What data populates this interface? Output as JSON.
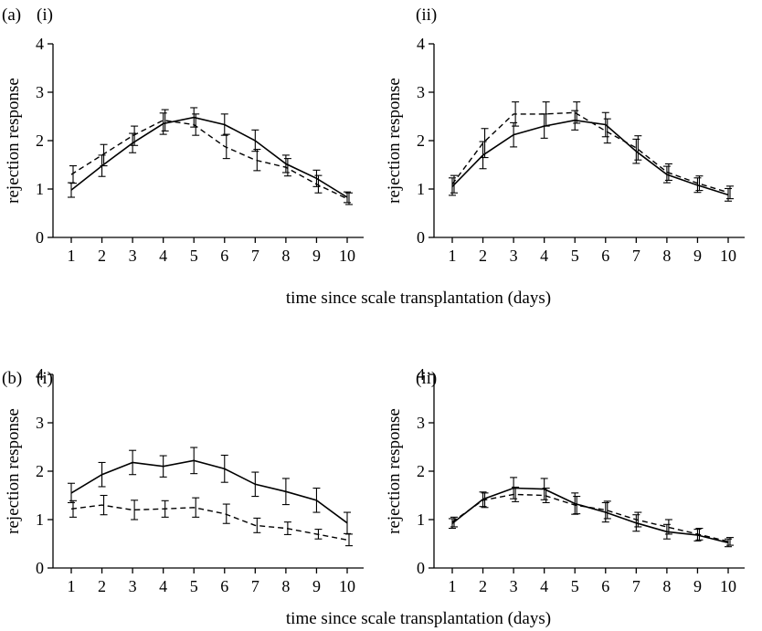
{
  "figure": {
    "xlabel_shared": "time since scale transplantation (days)",
    "section_labels": [
      "(a)",
      "(b)"
    ]
  },
  "chart_data": [
    {
      "type": "line",
      "panel": "(i)",
      "section": "(a)",
      "x": [
        1,
        2,
        3,
        4,
        5,
        6,
        7,
        8,
        9,
        10
      ],
      "xlim": [
        1,
        10
      ],
      "ylim": [
        0,
        4
      ],
      "yticks": [
        0,
        1,
        2,
        3,
        4
      ],
      "xlabel": "",
      "ylabel": "rejection response",
      "grid": false,
      "series": [
        {
          "style": "solid",
          "values": [
            0.98,
            1.48,
            1.95,
            2.35,
            2.48,
            2.33,
            2.0,
            1.52,
            1.22,
            0.83
          ],
          "err": [
            0.15,
            0.22,
            0.2,
            0.22,
            0.2,
            0.22,
            0.22,
            0.18,
            0.17,
            0.11
          ]
        },
        {
          "style": "dashed",
          "values": [
            1.3,
            1.7,
            2.1,
            2.42,
            2.33,
            1.88,
            1.6,
            1.45,
            1.1,
            0.8
          ],
          "err": [
            0.18,
            0.22,
            0.2,
            0.22,
            0.22,
            0.25,
            0.22,
            0.18,
            0.18,
            0.12
          ]
        }
      ]
    },
    {
      "type": "line",
      "panel": "(ii)",
      "section": "(a)",
      "x": [
        1,
        2,
        3,
        4,
        5,
        6,
        7,
        8,
        9,
        10
      ],
      "xlim": [
        1,
        10
      ],
      "ylim": [
        0,
        4
      ],
      "yticks": [
        0,
        1,
        2,
        3,
        4
      ],
      "xlabel": "",
      "ylabel": "rejection response",
      "grid": false,
      "series": [
        {
          "style": "solid",
          "values": [
            1.05,
            1.7,
            2.12,
            2.3,
            2.42,
            2.33,
            1.78,
            1.3,
            1.08,
            0.88
          ],
          "err": [
            0.18,
            0.28,
            0.25,
            0.25,
            0.2,
            0.25,
            0.25,
            0.17,
            0.15,
            0.13
          ]
        },
        {
          "style": "dashed",
          "values": [
            1.1,
            1.95,
            2.55,
            2.55,
            2.58,
            2.2,
            1.85,
            1.35,
            1.12,
            0.93
          ],
          "err": [
            0.18,
            0.3,
            0.25,
            0.25,
            0.22,
            0.25,
            0.25,
            0.17,
            0.15,
            0.13
          ]
        }
      ]
    },
    {
      "type": "line",
      "panel": "(i)",
      "section": "(b)",
      "x": [
        1,
        2,
        3,
        4,
        5,
        6,
        7,
        8,
        9,
        10
      ],
      "xlim": [
        1,
        10
      ],
      "ylim": [
        0,
        4
      ],
      "yticks": [
        0,
        1,
        2,
        3,
        4
      ],
      "xlabel": "",
      "ylabel": "rejection response",
      "grid": false,
      "series": [
        {
          "style": "solid",
          "values": [
            1.55,
            1.93,
            2.18,
            2.1,
            2.22,
            2.05,
            1.73,
            1.58,
            1.4,
            0.93
          ],
          "err": [
            0.2,
            0.25,
            0.25,
            0.22,
            0.27,
            0.28,
            0.25,
            0.27,
            0.25,
            0.22
          ]
        },
        {
          "style": "dashed",
          "values": [
            1.22,
            1.3,
            1.2,
            1.22,
            1.25,
            1.12,
            0.88,
            0.82,
            0.7,
            0.58
          ],
          "err": [
            0.17,
            0.2,
            0.2,
            0.17,
            0.2,
            0.2,
            0.15,
            0.13,
            0.1,
            0.12
          ]
        }
      ]
    },
    {
      "type": "line",
      "panel": "(ii)",
      "section": "(b)",
      "x": [
        1,
        2,
        3,
        4,
        5,
        6,
        7,
        8,
        9,
        10
      ],
      "xlim": [
        1,
        10
      ],
      "ylim": [
        0,
        4
      ],
      "yticks": [
        0,
        1,
        2,
        3,
        4
      ],
      "xlabel": "",
      "ylabel": "rejection response",
      "grid": false,
      "series": [
        {
          "style": "solid",
          "values": [
            0.92,
            1.42,
            1.65,
            1.63,
            1.33,
            1.15,
            0.93,
            0.75,
            0.68,
            0.52
          ],
          "err": [
            0.1,
            0.15,
            0.22,
            0.22,
            0.22,
            0.2,
            0.17,
            0.15,
            0.12,
            0.08
          ]
        },
        {
          "style": "dashed",
          "values": [
            0.95,
            1.4,
            1.52,
            1.5,
            1.3,
            1.2,
            1.0,
            0.85,
            0.7,
            0.55
          ],
          "err": [
            0.1,
            0.15,
            0.15,
            0.15,
            0.18,
            0.18,
            0.15,
            0.15,
            0.12,
            0.08
          ]
        }
      ]
    }
  ]
}
